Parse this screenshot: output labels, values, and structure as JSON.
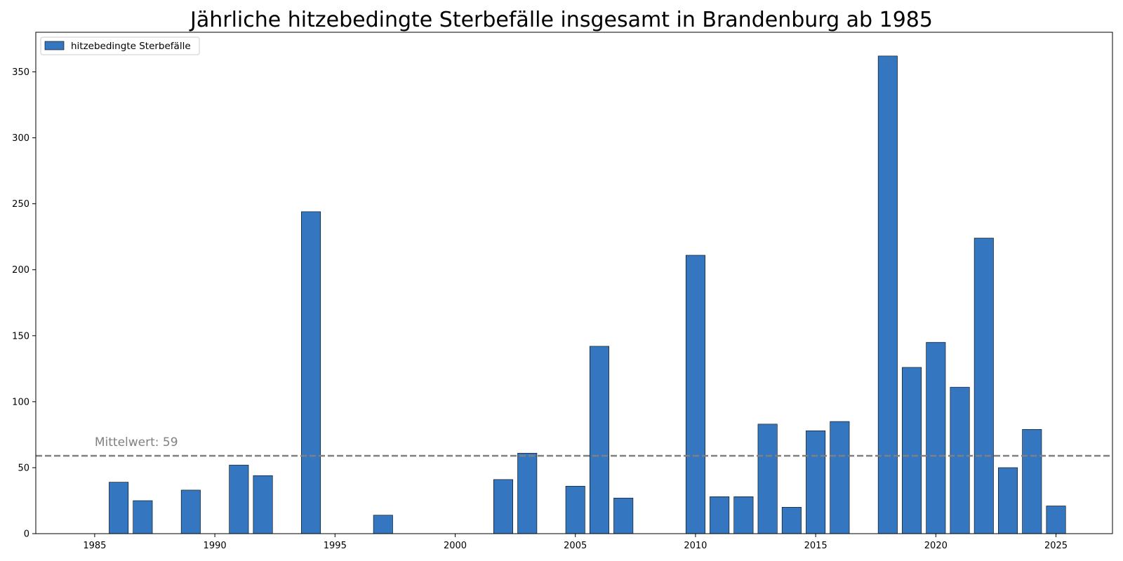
{
  "chart_data": {
    "type": "bar",
    "title": "Jährliche hitzebedingte Sterbefälle insgesamt in Brandenburg ab 1985",
    "xlabel": "",
    "ylabel": "",
    "x": [
      1985,
      1986,
      1987,
      1988,
      1989,
      1990,
      1991,
      1992,
      1993,
      1994,
      1995,
      1996,
      1997,
      1998,
      1999,
      2000,
      2001,
      2002,
      2003,
      2004,
      2005,
      2006,
      2007,
      2008,
      2009,
      2010,
      2011,
      2012,
      2013,
      2014,
      2015,
      2016,
      2017,
      2018,
      2019,
      2020,
      2021,
      2022,
      2023,
      2024,
      2025
    ],
    "series": [
      {
        "name": "hitzebedingte Sterbefälle",
        "color": "#3477c0",
        "values": [
          0,
          39,
          25,
          0,
          33,
          0,
          52,
          44,
          0,
          244,
          0,
          0,
          14,
          0,
          0,
          0,
          0,
          41,
          61,
          0,
          36,
          142,
          27,
          0,
          0,
          211,
          28,
          28,
          83,
          20,
          78,
          85,
          0,
          362,
          126,
          145,
          111,
          224,
          50,
          79,
          21
        ]
      }
    ],
    "xlim": [
      1982.55,
      1927.45
    ],
    "ylim": [
      0,
      380
    ],
    "xticks": [
      1985,
      1990,
      1995,
      2000,
      2005,
      2010,
      2015,
      2020,
      2025
    ],
    "yticks": [
      0,
      50,
      100,
      150,
      200,
      250,
      300,
      350
    ],
    "legend": {
      "position": "upper-left",
      "label": "hitzebedingte Sterbefälle"
    },
    "mean_line": {
      "value": 59,
      "label": "Mittelwert: 59",
      "color": "#808080",
      "style": "dashed"
    },
    "grid": false
  }
}
